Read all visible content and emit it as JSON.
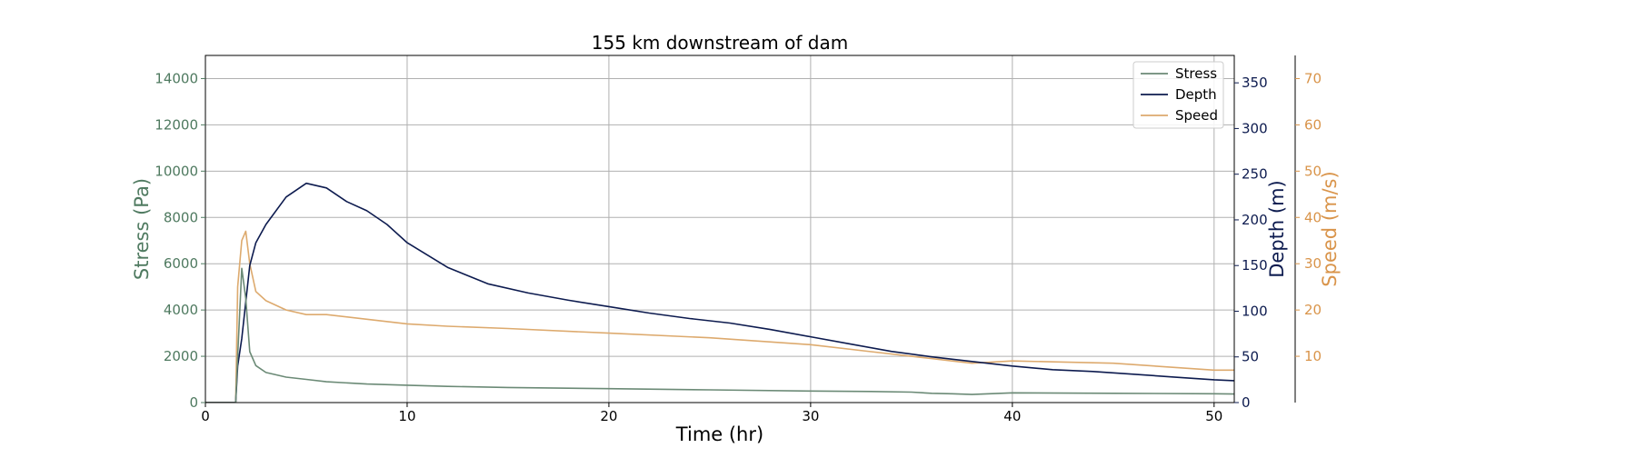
{
  "chart_data": {
    "type": "line",
    "title": "155 km downstream of dam",
    "xlabel": "Time (hr)",
    "xlim": [
      0,
      51
    ],
    "x_ticks": [
      "0",
      "10",
      "20",
      "30",
      "40",
      "50"
    ],
    "grid": true,
    "legend_position": "top-right",
    "axes": {
      "stress": {
        "label": "Stress (Pa)",
        "side": "left",
        "ylim": [
          0,
          15000
        ],
        "ticks": [
          "0",
          "2000",
          "4000",
          "6000",
          "8000",
          "10000",
          "12000",
          "14000"
        ],
        "color": "#4f7a60"
      },
      "depth": {
        "label": "Depth (m)",
        "side": "right",
        "ylim": [
          0,
          380
        ],
        "ticks": [
          "0",
          "50",
          "100",
          "150",
          "200",
          "250",
          "300",
          "350"
        ],
        "color": "#0d1b4f"
      },
      "speed": {
        "label": "Speed (m/s)",
        "side": "right-outer",
        "ylim": [
          0,
          75
        ],
        "ticks": [
          "10",
          "20",
          "30",
          "40",
          "50",
          "60",
          "70"
        ],
        "color": "#d9944a"
      }
    },
    "series": [
      {
        "name": "Stress",
        "axis": "stress",
        "color": "#6b8a76",
        "x": [
          0,
          1.5,
          1.6,
          1.8,
          2.0,
          2.2,
          2.5,
          3,
          4,
          5,
          6,
          8,
          10,
          12,
          15,
          20,
          25,
          30,
          33,
          35,
          36,
          37,
          38,
          40,
          45,
          50,
          51
        ],
        "y": [
          0,
          0,
          2000,
          5800,
          4500,
          2200,
          1600,
          1300,
          1100,
          1000,
          900,
          800,
          750,
          700,
          650,
          600,
          550,
          500,
          480,
          450,
          400,
          380,
          350,
          420,
          400,
          380,
          370
        ]
      },
      {
        "name": "Depth",
        "axis": "depth",
        "color": "#0d1b4f",
        "x": [
          0,
          1.5,
          1.6,
          1.8,
          2.0,
          2.2,
          2.5,
          3,
          4,
          5,
          6,
          7,
          8,
          9,
          10,
          12,
          14,
          16,
          18,
          20,
          22,
          24,
          26,
          28,
          30,
          32,
          34,
          36,
          38,
          40,
          42,
          44,
          46,
          48,
          50,
          51
        ],
        "y": [
          0,
          0,
          40,
          70,
          110,
          150,
          175,
          195,
          225,
          240,
          235,
          220,
          210,
          195,
          175,
          148,
          130,
          120,
          112,
          105,
          98,
          92,
          87,
          80,
          72,
          64,
          56,
          50,
          45,
          40,
          36,
          34,
          31,
          28,
          25,
          24
        ]
      },
      {
        "name": "Speed",
        "axis": "speed",
        "color": "#ddaa6e",
        "x": [
          0,
          1.5,
          1.6,
          1.8,
          2.0,
          2.2,
          2.5,
          3,
          4,
          5,
          6,
          8,
          10,
          12,
          15,
          20,
          25,
          30,
          33,
          35,
          36,
          37,
          38,
          40,
          45,
          50,
          51
        ],
        "y": [
          0,
          0,
          25,
          35,
          37,
          30,
          24,
          22,
          20,
          19,
          19,
          18,
          17,
          16.5,
          16,
          15,
          14,
          12.5,
          11,
          10,
          9.5,
          9,
          8.5,
          9,
          8.5,
          7,
          7
        ]
      }
    ]
  }
}
